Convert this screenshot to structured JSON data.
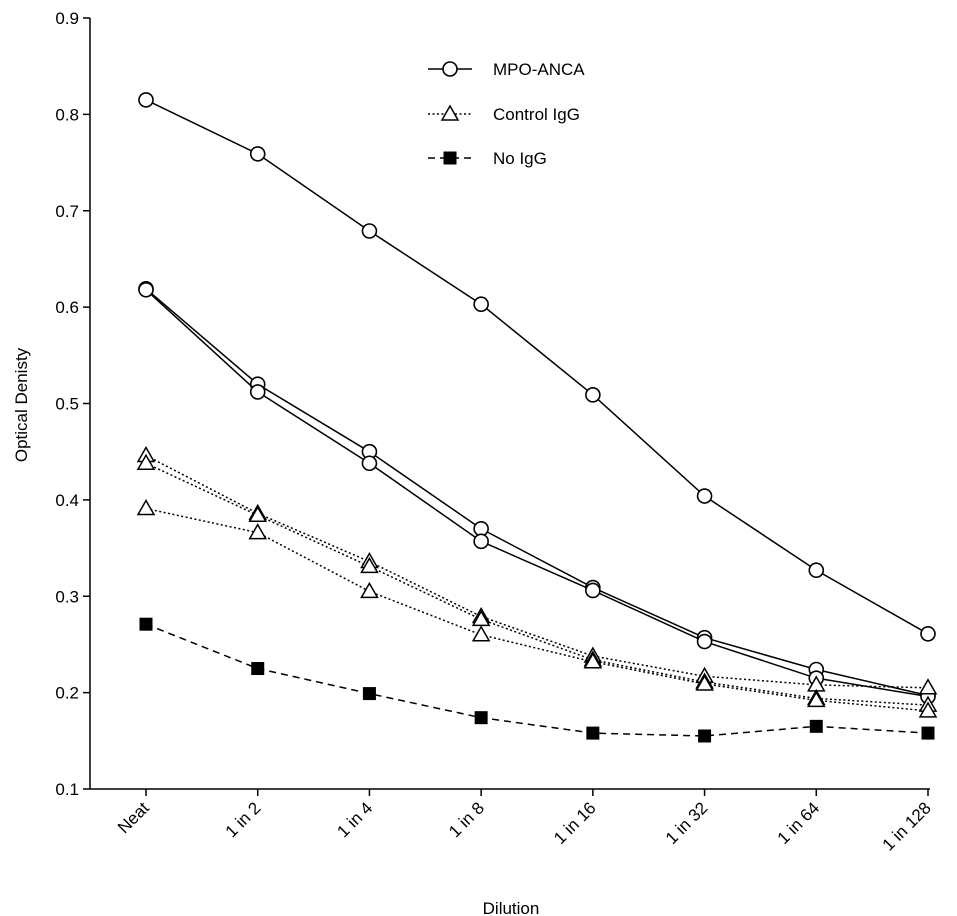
{
  "chart_data": {
    "type": "line",
    "title": "",
    "xlabel": "Dilution",
    "ylabel": "Optical Denisty",
    "categories": [
      "Neat",
      "1 in 2",
      "1 in 4",
      "1 in 8",
      "1 in 16",
      "1 in 32",
      "1 in 64",
      "1 in 128"
    ],
    "ylim": [
      0.1,
      0.9
    ],
    "yticks": [
      "0.1",
      "0.2",
      "0.3",
      "0.4",
      "0.5",
      "0.6",
      "0.7",
      "0.8",
      "0.9"
    ],
    "grid": false,
    "legend_position": "top-center",
    "legend": [
      {
        "label": "MPO-ANCA",
        "marker": "circle-open",
        "line": "solid"
      },
      {
        "label": "Control IgG",
        "marker": "triangle-open",
        "line": "dotted"
      },
      {
        "label": "No IgG",
        "marker": "square-filled",
        "line": "dashed"
      }
    ],
    "series": [
      {
        "group": "MPO-ANCA",
        "marker": "circle-open",
        "line": "solid",
        "values": [
          0.815,
          0.759,
          0.679,
          0.603,
          0.509,
          0.404,
          0.327,
          0.261
        ]
      },
      {
        "group": "MPO-ANCA",
        "marker": "circle-open",
        "line": "solid",
        "values": [
          0.619,
          0.52,
          0.45,
          0.37,
          0.309,
          0.257,
          0.224,
          0.197
        ]
      },
      {
        "group": "MPO-ANCA",
        "marker": "circle-open",
        "line": "solid",
        "values": [
          0.618,
          0.512,
          0.438,
          0.357,
          0.306,
          0.253,
          0.215,
          0.196
        ]
      },
      {
        "group": "Control IgG",
        "marker": "triangle-open",
        "line": "dotted",
        "values": [
          0.446,
          0.386,
          0.336,
          0.279,
          0.238,
          0.217,
          0.208,
          0.205
        ]
      },
      {
        "group": "Control IgG",
        "marker": "triangle-open",
        "line": "dotted",
        "values": [
          0.438,
          0.384,
          0.331,
          0.276,
          0.234,
          0.211,
          0.194,
          0.187
        ]
      },
      {
        "group": "Control IgG",
        "marker": "triangle-open",
        "line": "dotted",
        "values": [
          0.391,
          0.366,
          0.305,
          0.26,
          0.232,
          0.209,
          0.192,
          0.181
        ]
      },
      {
        "group": "No IgG",
        "marker": "square-filled",
        "line": "dashed",
        "values": [
          0.271,
          0.225,
          0.199,
          0.174,
          0.158,
          0.155,
          0.165,
          0.158
        ]
      }
    ]
  }
}
